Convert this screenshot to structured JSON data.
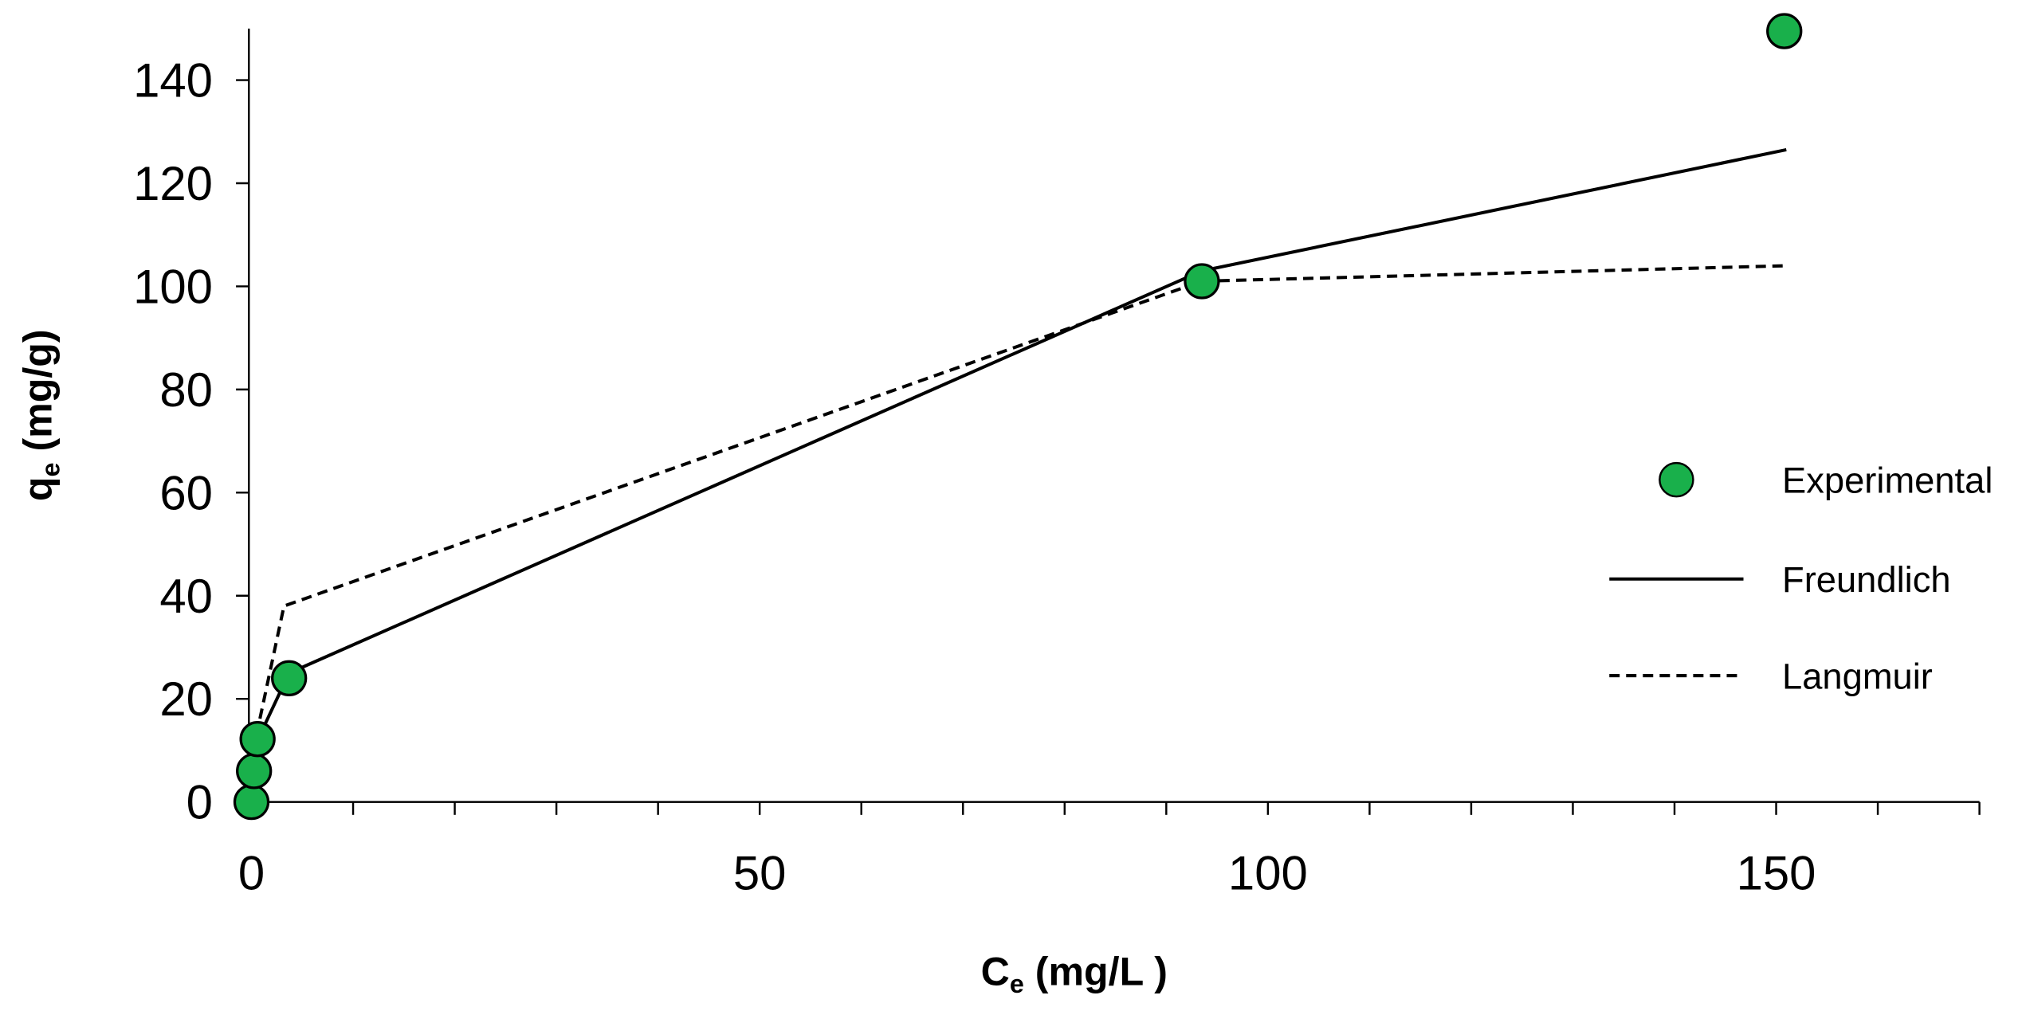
{
  "chart_data": {
    "type": "scatter",
    "xlabel": {
      "main": "C",
      "sub": "e",
      "rest": " (mg/L )"
    },
    "ylabel": {
      "main": "q",
      "sub": "e",
      "rest": " (mg/g)"
    },
    "xlim": [
      0,
      170
    ],
    "ylim": [
      0,
      150
    ],
    "xticks": [
      0,
      50,
      100,
      150
    ],
    "x_minor_ticks": [
      10,
      20,
      30,
      40,
      60,
      70,
      80,
      90,
      110,
      120,
      130,
      140,
      160,
      170
    ],
    "yticks": [
      0,
      20,
      40,
      60,
      80,
      100,
      120,
      140
    ],
    "series": [
      {
        "name": "Experimental",
        "kind": "scatter",
        "color": "#19b04b",
        "x": [
          0,
          0.25,
          0.6,
          3.7,
          93.5,
          150.8
        ],
        "values": [
          0,
          6,
          12.2,
          24,
          101,
          149.5
        ]
      },
      {
        "name": "Freundlich",
        "kind": "line",
        "line_style": "solid",
        "color": "#000000",
        "x": [
          0,
          0.25,
          0.6,
          3.7,
          93.5,
          151
        ],
        "values": [
          0,
          6,
          12,
          25,
          103,
          126.5
        ]
      },
      {
        "name": "Langmuir",
        "kind": "line",
        "line_style": "dashed",
        "color": "#000000",
        "x": [
          0,
          0.25,
          0.6,
          3.2,
          93.5,
          151
        ],
        "values": [
          0,
          5,
          14,
          38,
          101,
          104
        ]
      }
    ]
  }
}
